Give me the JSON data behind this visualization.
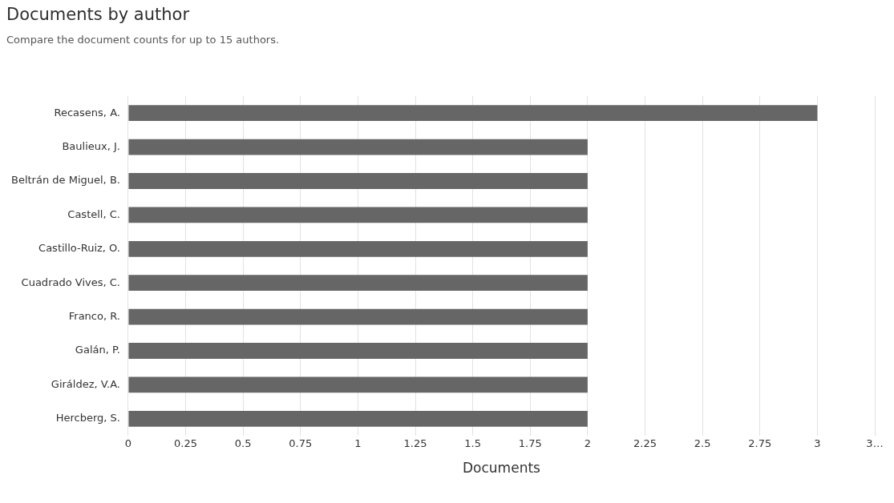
{
  "chart_data": {
    "type": "bar",
    "orientation": "horizontal",
    "title": "Documents by author",
    "subtitle": "Compare the document counts for up to 15 authors.",
    "xlabel": "Documents",
    "categories": [
      "Recasens, A.",
      "Baulieux, J.",
      "Beltrán de Miguel, B.",
      "Castell, C.",
      "Castillo-Ruiz, O.",
      "Cuadrado Vives, C.",
      "Franco, R.",
      "Galán, P.",
      "Giráldez, V.A.",
      "Hercberg, S."
    ],
    "values": [
      3,
      2,
      2,
      2,
      2,
      2,
      2,
      2,
      2,
      2
    ],
    "color": "#666666",
    "xlim": [
      0,
      3.25
    ],
    "xticks": [
      0,
      0.25,
      0.5,
      0.75,
      1,
      1.25,
      1.5,
      1.75,
      2,
      2.25,
      2.5,
      2.75,
      3,
      {
        "value": 3.25,
        "label": "3…"
      }
    ],
    "grid": "x",
    "legend": false
  }
}
